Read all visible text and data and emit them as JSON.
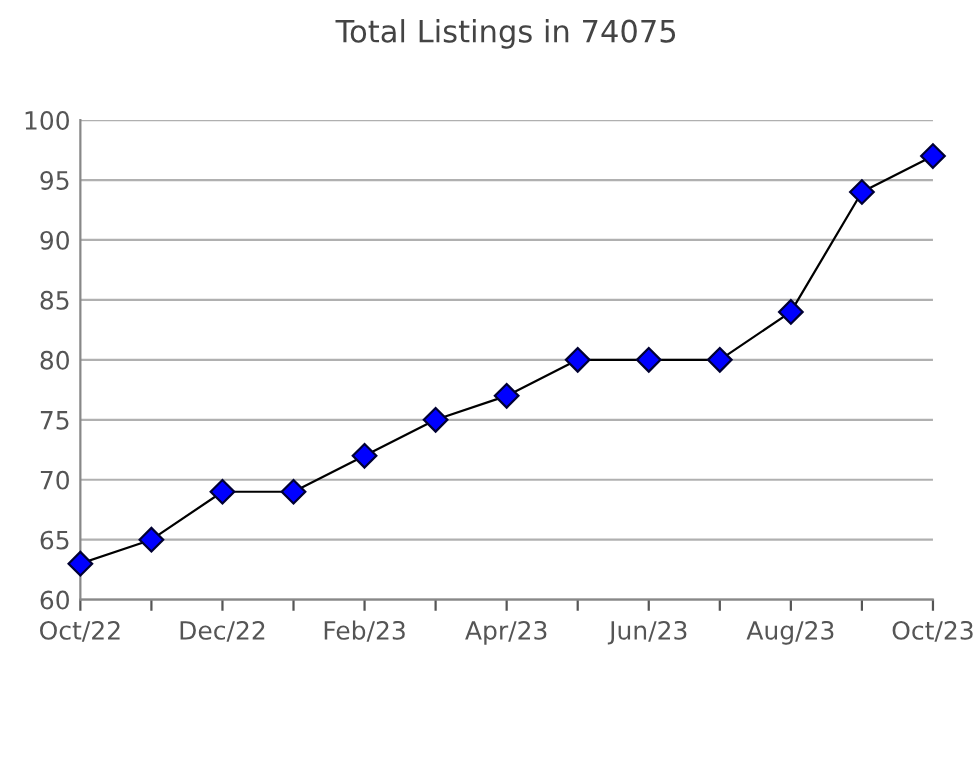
{
  "chart_data": {
    "type": "line",
    "title": "Total Listings in 74075",
    "categories": [
      "Oct/22",
      null,
      "Dec/22",
      null,
      "Feb/23",
      null,
      "Apr/23",
      null,
      "Jun/23",
      null,
      "Aug/23",
      null,
      "Oct/23"
    ],
    "series": [
      {
        "color": "#0000ff",
        "values": [
          63,
          65,
          69,
          69,
          72,
          75,
          77,
          80,
          80,
          80,
          84,
          94,
          97
        ]
      }
    ],
    "ylim": [
      60,
      100
    ],
    "yticks": [
      60,
      65,
      70,
      75,
      80,
      85,
      90,
      95,
      100
    ],
    "grid": "y",
    "marker": "diamond",
    "line_style": "solid"
  }
}
